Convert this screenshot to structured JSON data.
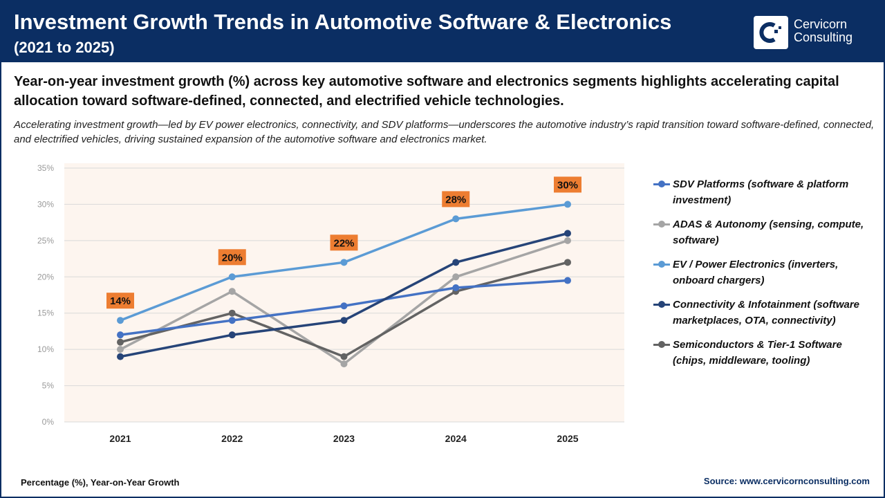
{
  "header": {
    "title": "Investment Growth Trends in Automotive Software & Electronics",
    "subtitle": "(2021 to 2025)",
    "logo_text_1": "Cervicorn",
    "logo_text_2": "Consulting"
  },
  "summary": "Year-on-year investment growth (%) across key automotive software and electronics segments highlights accelerating capital allocation toward software-defined, connected, and electrified vehicle technologies.",
  "description": "Accelerating investment growth—led by EV power electronics, connectivity, and SDV platforms—underscores the automotive industry’s rapid transition toward software-defined, connected, and electrified vehicles, driving sustained expansion of the automotive software and electronics market.",
  "footer": {
    "unit_note": "Percentage (%), Year-on-Year Growth",
    "source": "Source: www.cervicornconsulting.com"
  },
  "chart_data": {
    "type": "line",
    "categories": [
      "2021",
      "2022",
      "2023",
      "2024",
      "2025"
    ],
    "ylim": [
      0,
      35
    ],
    "yticks": [
      "0%",
      "5%",
      "10%",
      "15%",
      "20%",
      "25%",
      "30%",
      "35%"
    ],
    "grid": true,
    "legend_placement": "right",
    "series": [
      {
        "name": "SDV Platforms (software & platform investment)",
        "color": "#4472c4",
        "values": [
          12,
          14,
          16,
          18.5,
          19.5
        ]
      },
      {
        "name": "ADAS & Autonomy (sensing, compute, software)",
        "color": "#a5a5a5",
        "values": [
          10,
          18,
          8,
          20,
          25
        ]
      },
      {
        "name": "EV / Power Electronics (inverters, onboard chargers)",
        "color": "#5b9bd5",
        "values": [
          14,
          20,
          22,
          28,
          30
        ],
        "data_labels": [
          "14%",
          "20%",
          "22%",
          "28%",
          "30%"
        ]
      },
      {
        "name": "Connectivity & Infotainment (software marketplaces, OTA, connectivity)",
        "color": "#264478",
        "values": [
          9,
          12,
          14,
          22,
          26
        ]
      },
      {
        "name": "Semiconductors & Tier-1 Software (chips, middleware, tooling)",
        "color": "#636363",
        "values": [
          11,
          15,
          9,
          18,
          22
        ]
      }
    ],
    "label_color": "#ed7d31",
    "plot_bg": "#fdf5ef"
  }
}
